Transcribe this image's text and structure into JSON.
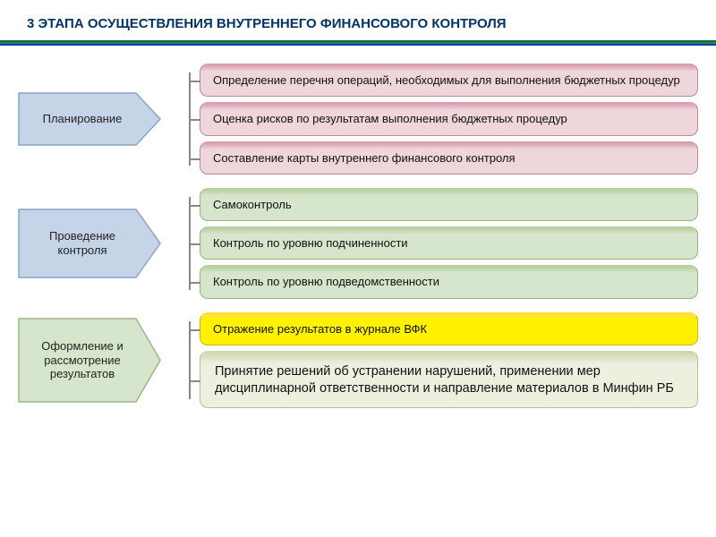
{
  "title": "3 ЭТАПА ОСУЩЕСТВЛЕНИЯ ВНУТРЕННЕГО ФИНАНСОВОГО КОНТРОЛЯ",
  "colors": {
    "title_text": "#003366",
    "underline_top": "#0a6b3a",
    "underline_middle": "#5aa05a",
    "underline_bottom": "#0044aa",
    "connector": "#888888",
    "background": "#ffffff"
  },
  "stages": [
    {
      "label": "Планирование",
      "arrow_fill": "#c6d4e8",
      "arrow_stroke": "#8aa2c8",
      "arrow_height": 60,
      "items": [
        {
          "text": "Определение перечня операций, необходимых для выполнения бюджетных процедур",
          "bg": "#eed6db",
          "border": "#b88a9a",
          "border_top": "#d9a0b0"
        },
        {
          "text": "Оценка рисков по результатам выполнения бюджетных процедур",
          "bg": "#eed6db",
          "border": "#b88a9a",
          "border_top": "#d9a0b0"
        },
        {
          "text": "Составление карты внутреннего финансового контроля",
          "bg": "#eed6db",
          "border": "#b88a9a",
          "border_top": "#d9a0b0"
        }
      ]
    },
    {
      "label": "Проведение контроля",
      "arrow_fill": "#c6d4e8",
      "arrow_stroke": "#8aa2c8",
      "arrow_height": 78,
      "items": [
        {
          "text": "Самоконтроль",
          "bg": "#d6e6cc",
          "border": "#99b380",
          "border_top": "#b8d0a0"
        },
        {
          "text": "Контроль по уровню подчиненности",
          "bg": "#d6e6cc",
          "border": "#99b380",
          "border_top": "#b8d0a0"
        },
        {
          "text": "Контроль по уровню подведомственности",
          "bg": "#d6e6cc",
          "border": "#99b380",
          "border_top": "#b8d0a0"
        }
      ]
    },
    {
      "label": "Оформление и рассмотрение результатов",
      "arrow_fill": "#d6e6cc",
      "arrow_stroke": "#9ab888",
      "arrow_height": 95,
      "items": [
        {
          "text": "Отражение результатов в журнале ВФК",
          "bg": "#fff200",
          "border": "#ccb800",
          "border_top": "#ffe040"
        },
        {
          "text": "Принятие решений об устранении нарушений, применении мер дисциплинарной ответственности и направление материалов в Минфин РБ",
          "bg": "#ecf0de",
          "border": "#b8c090",
          "border_top": "#d0d8b0",
          "big": true
        }
      ]
    }
  ]
}
